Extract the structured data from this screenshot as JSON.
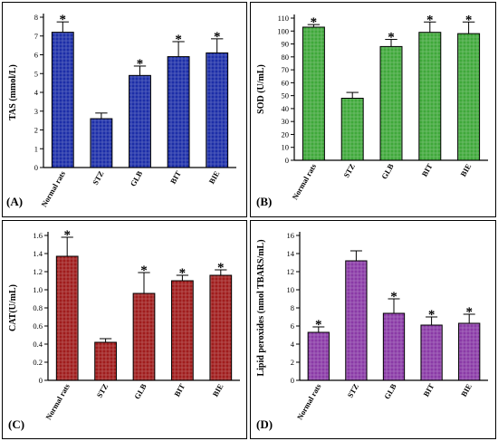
{
  "chart_data": [
    {
      "type": "bar",
      "panel_label": "(A)",
      "ylabel": "TAS (mmol/L)",
      "categories": [
        "Normal rats",
        "STZ",
        "GLB",
        "BIT",
        "BIE"
      ],
      "values": [
        7.2,
        2.6,
        4.9,
        5.9,
        6.1
      ],
      "errors": [
        0.55,
        0.3,
        0.5,
        0.8,
        0.75
      ],
      "significant": [
        true,
        false,
        true,
        true,
        true
      ],
      "significance_marker": "*",
      "ylim": [
        0,
        8
      ],
      "yticks": [
        "0",
        "1",
        "2",
        "3",
        "4",
        "5",
        "6",
        "7",
        "8"
      ],
      "bar_color": "#1c2ea8",
      "grid": false
    },
    {
      "type": "bar",
      "panel_label": "(B)",
      "ylabel": "SOD (U/mL)",
      "categories": [
        "Normal rats",
        "STZ",
        "GLB",
        "BIT",
        "BIE"
      ],
      "values": [
        103,
        48,
        88,
        99,
        98
      ],
      "errors": [
        2,
        4.5,
        5.5,
        8,
        9
      ],
      "significant": [
        true,
        false,
        true,
        true,
        true
      ],
      "significance_marker": "*",
      "ylim": [
        0,
        110
      ],
      "yticks": [
        "0",
        "10",
        "20",
        "30",
        "40",
        "50",
        "60",
        "70",
        "80",
        "90",
        "100",
        "110"
      ],
      "bar_color": "#3fa83a",
      "grid": false
    },
    {
      "type": "bar",
      "panel_label": "(C)",
      "ylabel": "CAT(U/mL)",
      "categories": [
        "Normal rats",
        "STZ",
        "GLB",
        "BIT",
        "BIE"
      ],
      "values": [
        1.37,
        0.42,
        0.96,
        1.1,
        1.16
      ],
      "errors": [
        0.21,
        0.04,
        0.23,
        0.06,
        0.06
      ],
      "significant": [
        true,
        false,
        true,
        true,
        true
      ],
      "significance_marker": "*",
      "ylim": [
        0,
        1.6
      ],
      "yticks": [
        "0",
        "0.2",
        "0.4",
        "0.6",
        "0.8",
        "1.0",
        "1.2",
        "1.4",
        "1.6"
      ],
      "bar_color": "#a01c1c",
      "grid": false
    },
    {
      "type": "bar",
      "panel_label": "(D)",
      "ylabel": "Lipid peroxides (nmol TBARS/mL)",
      "categories": [
        "Normal rats",
        "STZ",
        "GLB",
        "BIT",
        "BIE"
      ],
      "values": [
        5.3,
        13.2,
        7.4,
        6.1,
        6.3
      ],
      "errors": [
        0.6,
        1.1,
        1.6,
        0.9,
        1.0
      ],
      "significant": [
        true,
        false,
        true,
        true,
        true
      ],
      "significance_marker": "*",
      "ylim": [
        0,
        16
      ],
      "yticks": [
        "0",
        "2",
        "4",
        "6",
        "8",
        "10",
        "12",
        "14",
        "16"
      ],
      "bar_color": "#8a3aa6",
      "grid": false
    }
  ]
}
